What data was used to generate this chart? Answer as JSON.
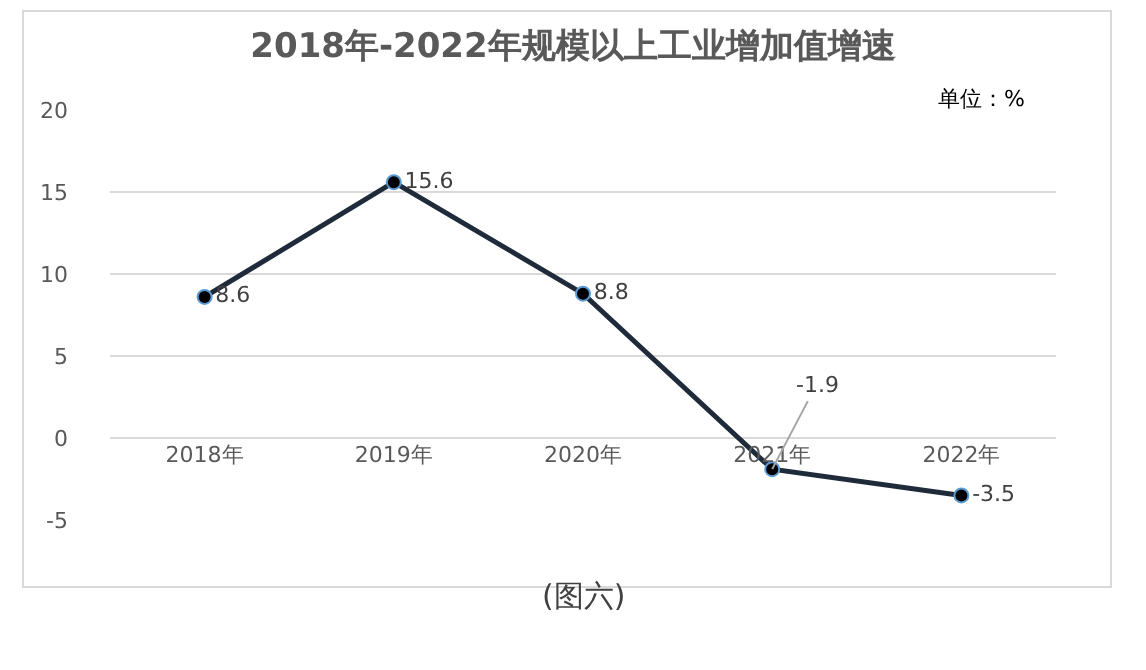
{
  "chart_data": {
    "type": "line",
    "title": "2018年-2022年规模以上工业增加值增速",
    "categories": [
      "2018年",
      "2019年",
      "2020年",
      "2021年",
      "2022年"
    ],
    "series": [
      {
        "color": "#1f2a3a",
        "values": [
          8.6,
          15.6,
          8.8,
          -1.9,
          -3.5
        ]
      }
    ],
    "ylim": [
      -5,
      20
    ],
    "yticks": [
      -5,
      0,
      5,
      10,
      15,
      20
    ],
    "grid": "y",
    "legend": false,
    "marker": "circle",
    "line_style": "solid",
    "data_labels": true,
    "annotations": [
      "单位：%",
      "(图六)"
    ]
  }
}
